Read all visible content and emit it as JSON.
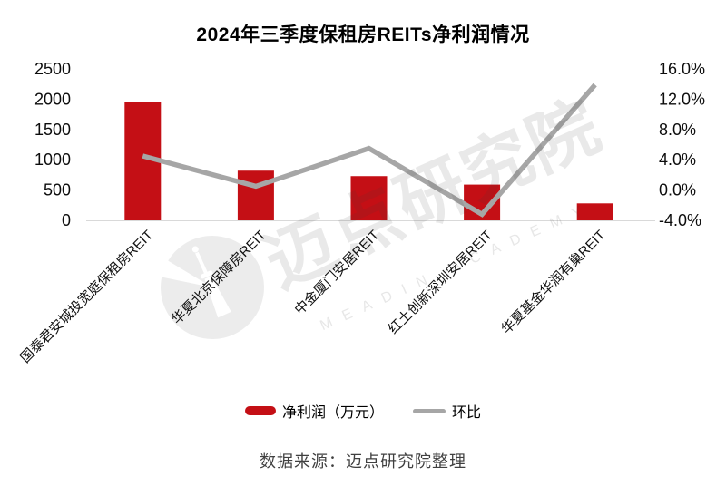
{
  "page": {
    "title": "2024年三季度保租房REITs净利润情况",
    "source_note": "数据来源：迈点研究院整理"
  },
  "watermark": {
    "text": "迈点研究院",
    "subtext": "MEADIN ACADEMY"
  },
  "chart_data": {
    "type": "bar",
    "title": "2024年三季度保租房REITs净利润情况",
    "categories": [
      "国泰君安城投宽庭保租房REIT",
      "华夏北京保障房REIT",
      "中金厦门安居REIT",
      "红土创新深圳安居REIT",
      "华夏基金华润有巢REIT"
    ],
    "series": [
      {
        "name": "净利润（万元）",
        "type": "bar",
        "axis": "left",
        "color": "#c40f15",
        "values": [
          1950,
          820,
          730,
          590,
          280
        ]
      },
      {
        "name": "环比",
        "type": "line",
        "axis": "right",
        "color": "#a6a6a6",
        "values": [
          4.5,
          0.5,
          5.5,
          -3.2,
          13.9
        ]
      }
    ],
    "left_axis": {
      "min": 0,
      "max": 2500,
      "step": 500,
      "ticks": [
        "2500",
        "2000",
        "1500",
        "1000",
        "500",
        "0"
      ]
    },
    "right_axis": {
      "min": -4,
      "max": 16,
      "step": 4,
      "ticks": [
        "16.0%",
        "12.0%",
        "8.0%",
        "4.0%",
        "0.0%",
        "-4.0%"
      ]
    },
    "grid": false,
    "legend_position": "bottom"
  }
}
